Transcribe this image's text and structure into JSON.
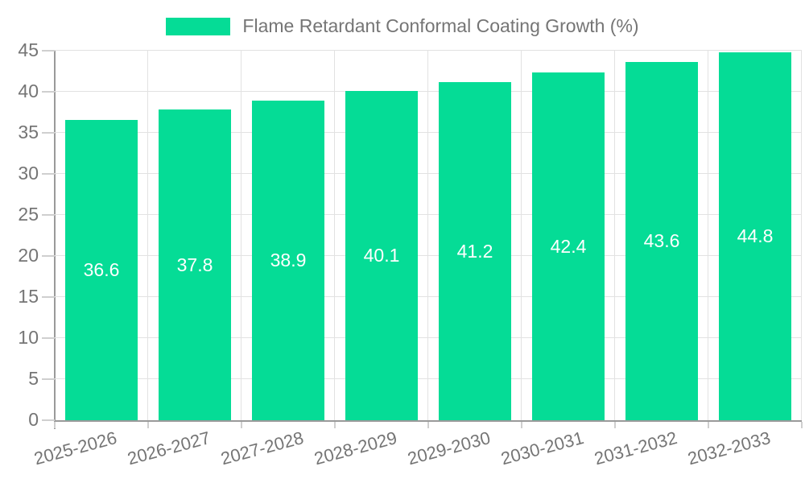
{
  "chart_data": {
    "type": "bar",
    "title": "Flame Retardant Conformal Coating Growth (%)",
    "legend_position": "top-center",
    "categories": [
      "2025-2026",
      "2026-2027",
      "2027-2028",
      "2028-2029",
      "2029-2030",
      "2030-2031",
      "2031-2032",
      "2032-2033"
    ],
    "series": [
      {
        "name": "Flame Retardant Conformal Coating Growth (%)",
        "values": [
          36.6,
          37.8,
          38.9,
          40.1,
          41.2,
          42.4,
          43.6,
          44.8
        ]
      }
    ],
    "bar_labels": [
      "36.6",
      "37.8",
      "38.9",
      "40.1",
      "41.2",
      "42.4",
      "43.6",
      "44.8"
    ],
    "xlabel": "",
    "ylabel": "",
    "ylim": [
      0,
      45
    ],
    "yticks": [
      0,
      5,
      10,
      15,
      20,
      25,
      30,
      35,
      40,
      45
    ],
    "grid": true,
    "x_label_rotation_deg": -15,
    "colors": {
      "bar": "#05dc96",
      "bar_label": "#ffffff",
      "axis_text": "#757575",
      "grid": "#e2e2e2",
      "axis_line": "#9a9a9a",
      "tick": "#cfcfcf",
      "background": "#ffffff"
    }
  }
}
